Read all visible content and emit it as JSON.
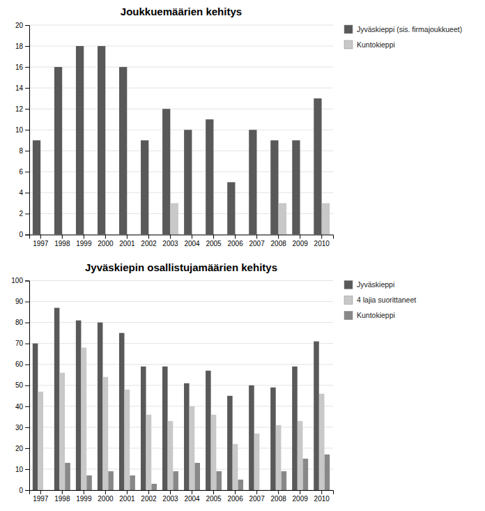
{
  "chart_data": [
    {
      "type": "bar",
      "title": "Joukkuemäärien kehitys",
      "categories": [
        "1997",
        "1998",
        "1999",
        "2000",
        "2001",
        "2002",
        "2003",
        "2004",
        "2005",
        "2006",
        "2007",
        "2008",
        "2009",
        "2010"
      ],
      "series": [
        {
          "name": "Jyväskieppi (sis. firmajoukkueet)",
          "color": "#595959",
          "values": [
            9,
            16,
            18,
            18,
            16,
            9,
            12,
            10,
            11,
            5,
            10,
            9,
            9,
            13
          ]
        },
        {
          "name": "Kuntokieppi",
          "color": "#c8c8c8",
          "values": [
            0,
            0,
            0,
            0,
            0,
            0,
            3,
            0,
            0,
            0,
            0,
            3,
            0,
            3
          ]
        }
      ],
      "ylim": [
        0,
        20
      ],
      "yticks": [
        0,
        2,
        4,
        6,
        8,
        10,
        12,
        14,
        16,
        18,
        20
      ],
      "grid": true,
      "legend": "right"
    },
    {
      "type": "bar",
      "title": "Jyväskiepin osallistujamäärien kehitys",
      "categories": [
        "1997",
        "1998",
        "1999",
        "2000",
        "2001",
        "2002",
        "2003",
        "2004",
        "2005",
        "2006",
        "2007",
        "2008",
        "2009",
        "2010"
      ],
      "series": [
        {
          "name": "Jyväskieppi",
          "color": "#595959",
          "values": [
            70,
            87,
            81,
            80,
            75,
            59,
            59,
            51,
            57,
            45,
            50,
            49,
            59,
            71
          ]
        },
        {
          "name": "4 lajia suorittaneet",
          "color": "#c8c8c8",
          "values": [
            47,
            56,
            68,
            54,
            48,
            36,
            33,
            40,
            36,
            22,
            27,
            31,
            33,
            46
          ]
        },
        {
          "name": "Kuntokieppi",
          "color": "#888888",
          "values": [
            0,
            13,
            7,
            9,
            7,
            3,
            9,
            13,
            9,
            5,
            0,
            9,
            15,
            17
          ]
        }
      ],
      "ylim": [
        0,
        100
      ],
      "yticks": [
        0,
        10,
        20,
        30,
        40,
        50,
        60,
        70,
        80,
        90,
        100
      ],
      "grid": true,
      "legend": "right"
    }
  ]
}
